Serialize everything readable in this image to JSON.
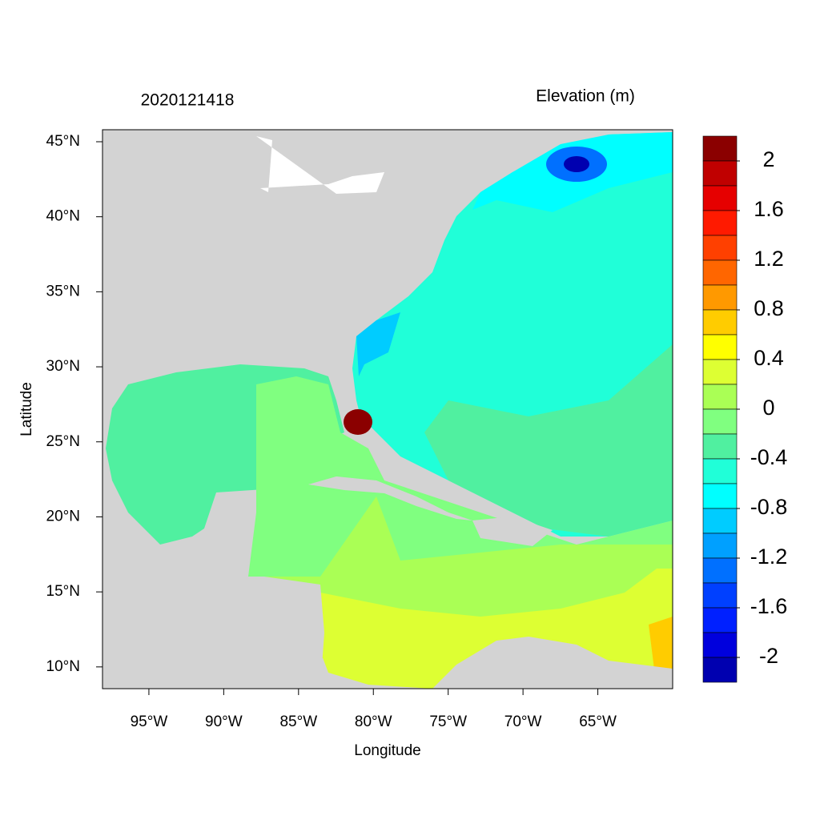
{
  "title_left": "2020121418",
  "title_right": "Elevation (m)",
  "x_axis": {
    "label": "Longitude",
    "lim": [
      -98.1,
      -60
    ],
    "ticks": [
      {
        "value": -95,
        "label": "95°W"
      },
      {
        "value": -90,
        "label": "90°W"
      },
      {
        "value": -85,
        "label": "85°W"
      },
      {
        "value": -80,
        "label": "80°W"
      },
      {
        "value": -75,
        "label": "75°W"
      },
      {
        "value": -70,
        "label": "70°W"
      },
      {
        "value": -65,
        "label": "65°W"
      }
    ]
  },
  "y_axis": {
    "label": "Latitude",
    "lim": [
      8.55,
      45.8
    ],
    "ticks": [
      {
        "value": 10,
        "label": "10°N"
      },
      {
        "value": 15,
        "label": "15°N"
      },
      {
        "value": 20,
        "label": "20°N"
      },
      {
        "value": 25,
        "label": "25°N"
      },
      {
        "value": 30,
        "label": "30°N"
      },
      {
        "value": 35,
        "label": "35°N"
      },
      {
        "value": 40,
        "label": "40°N"
      },
      {
        "value": 45,
        "label": "45°N"
      }
    ]
  },
  "colorbar": {
    "lim": [
      -2.2,
      2.2
    ],
    "colors": [
      "#8b0000",
      "#c00000",
      "#e60000",
      "#ff1a00",
      "#ff4000",
      "#ff6600",
      "#ff9900",
      "#ffcc00",
      "#ffff00",
      "#ddff33",
      "#aaff55",
      "#80ff80",
      "#50f0a0",
      "#20ffd8",
      "#00ffff",
      "#00ccff",
      "#00a0ff",
      "#0070ff",
      "#0040ff",
      "#0020ff",
      "#0000dd",
      "#0000b0"
    ],
    "ticks": [
      2,
      1.6,
      1.2,
      0.8,
      0.4,
      0,
      -0.4,
      -0.8,
      -1.2,
      -1.6,
      -2
    ]
  }
}
